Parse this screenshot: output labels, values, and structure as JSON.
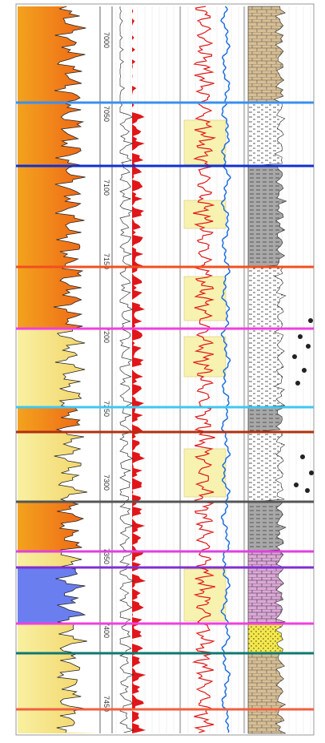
{
  "depth_track": {
    "labels": [
      7000,
      7050,
      7100,
      7150,
      7200,
      7250,
      7300,
      7350,
      7400,
      7450
    ]
  }
}
